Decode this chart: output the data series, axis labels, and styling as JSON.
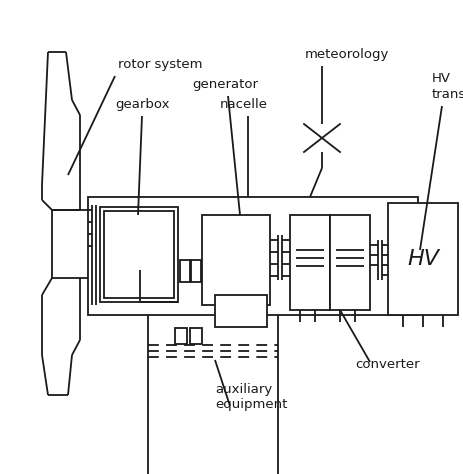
{
  "bg_color": "#ffffff",
  "line_color": "#1a1a1a",
  "labels": {
    "rotor_system": "rotor system",
    "gearbox": "gearbox",
    "generator": "generator",
    "nacelle": "nacelle",
    "meteorology": "meteorology",
    "converter": "converter",
    "auxiliary": "auxiliary\nequipment",
    "HV": "HV",
    "HV_trans_1": "HV",
    "HV_trans_2": "trans"
  },
  "figsize": [
    4.63,
    4.74
  ],
  "dpi": 100
}
